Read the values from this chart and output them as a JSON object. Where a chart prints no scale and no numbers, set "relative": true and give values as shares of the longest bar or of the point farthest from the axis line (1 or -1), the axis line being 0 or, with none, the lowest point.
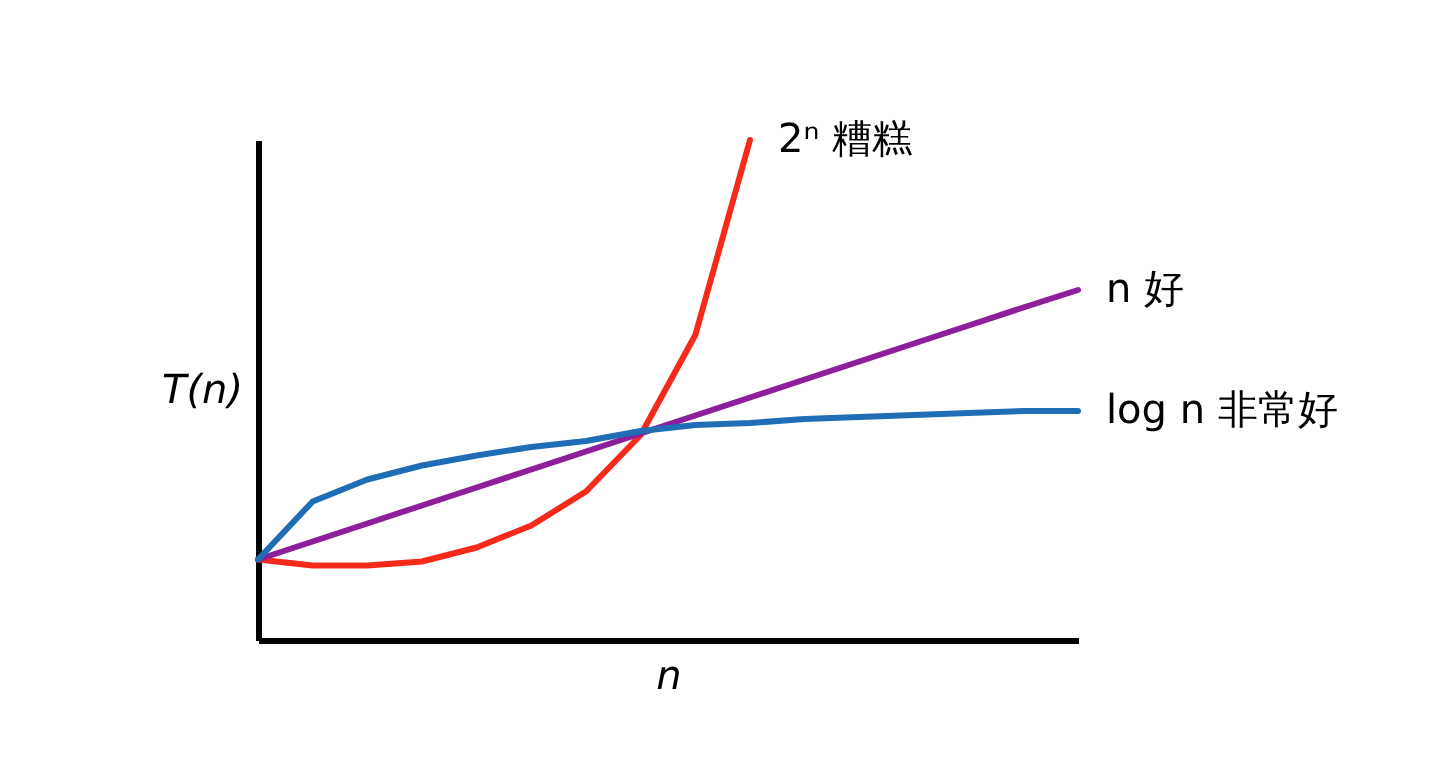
{
  "chart_data": {
    "type": "line",
    "relative": true,
    "xlabel": "n",
    "ylabel": "T(n)",
    "legend": false,
    "categories": [
      null,
      null,
      null,
      null,
      null,
      null,
      null,
      null,
      null,
      null,
      null,
      null,
      null,
      null,
      null,
      null
    ],
    "series": [
      {
        "name": "2ⁿ 糟糕",
        "color": "#f52a1a",
        "values": [
          0.161,
          0.149,
          0.149,
          0.157,
          0.185,
          0.229,
          0.297,
          0.41,
          0.61,
          1,
          null,
          null,
          null,
          null,
          null,
          null
        ]
      },
      {
        "name": "n 好",
        "color": "#8e1f9b",
        "values": [
          0.161,
          0.197,
          0.233,
          0.269,
          0.305,
          0.341,
          0.377,
          0.413,
          0.449,
          0.485,
          0.521,
          0.557,
          0.593,
          0.629,
          0.665,
          0.7
        ]
      },
      {
        "name": "log n 非常好",
        "color": "#1f6db5",
        "values": [
          0.161,
          0.277,
          0.321,
          0.349,
          0.369,
          0.386,
          0.398,
          0.418,
          0.43,
          0.434,
          0.442,
          0.446,
          0.45,
          0.454,
          0.458,
          0.458
        ]
      }
    ]
  }
}
